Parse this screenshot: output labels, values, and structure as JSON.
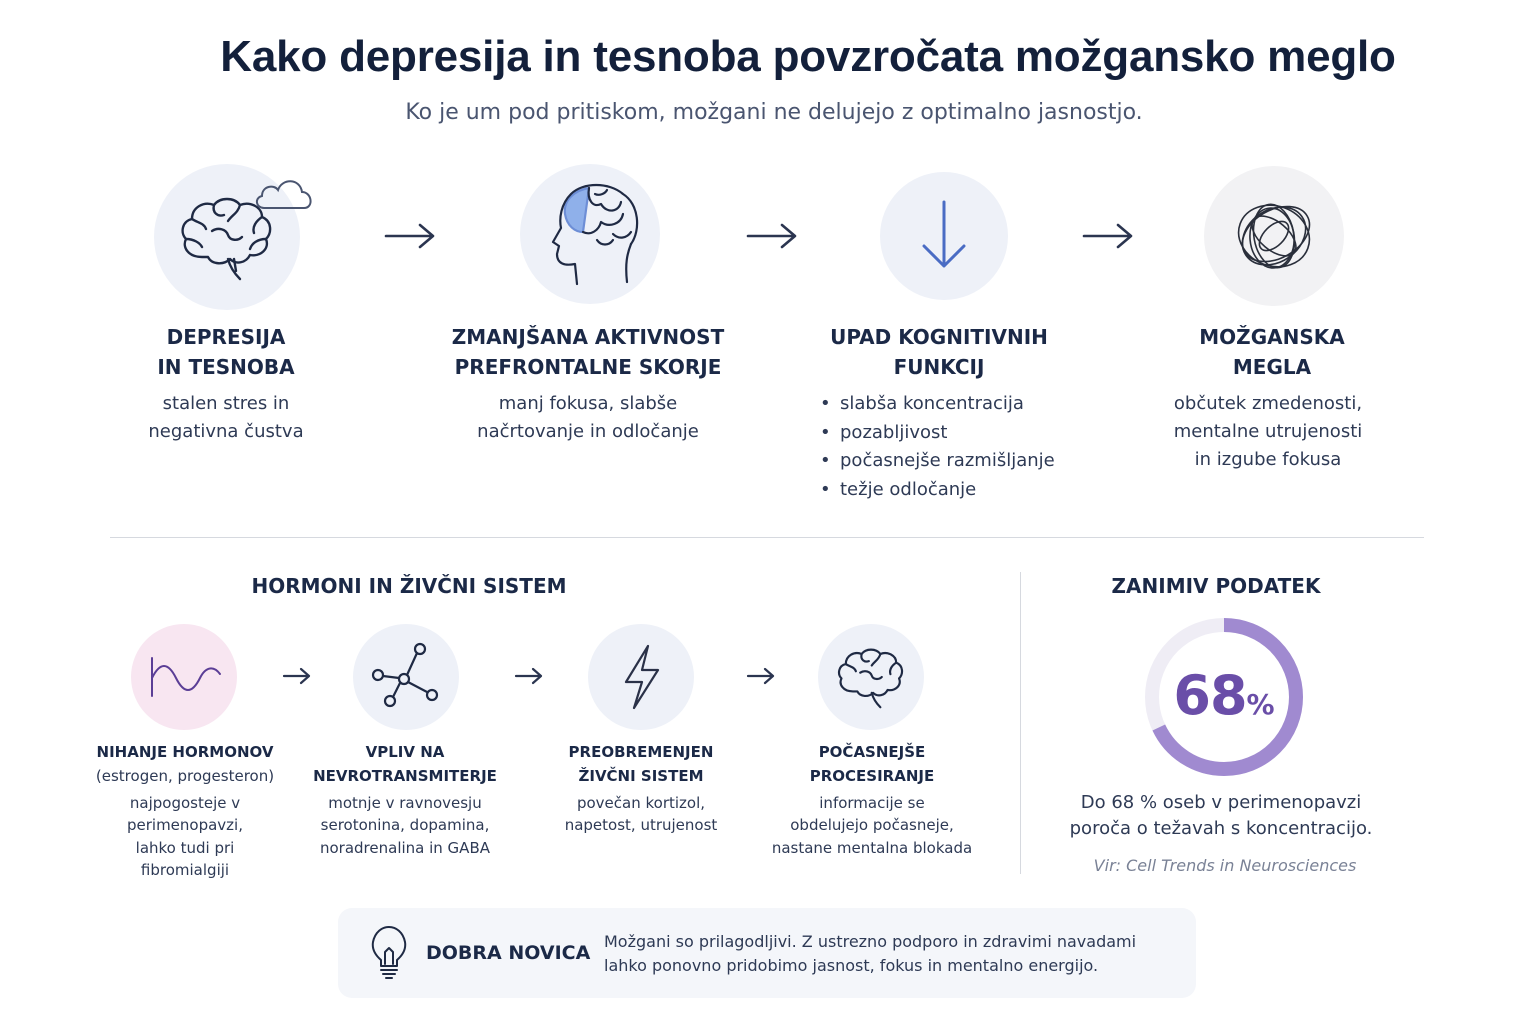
{
  "header": {
    "title": "Kako depresija in tesnoba povzročata možgansko meglo",
    "subtitle": "Ko je um pod pritiskom, možgani ne delujejo z optimalno jasnostjo."
  },
  "flow": [
    {
      "icon": "brain-cloud-icon",
      "title_lines": [
        "DEPRESIJA",
        "IN TESNOBA"
      ],
      "text_lines": [
        "stalen stres in",
        "negativna čustva"
      ]
    },
    {
      "icon": "head-prefrontal-icon",
      "title_lines": [
        "ZMANJŠANA AKTIVNOST",
        "PREFRONTALNE SKORJE"
      ],
      "text_lines": [
        "manj fokusa, slabše",
        "načrtovanje in odločanje"
      ]
    },
    {
      "icon": "down-arrow-icon",
      "title_lines": [
        "UPAD KOGNITIVNIH",
        "FUNKCIJ"
      ],
      "bullets": [
        "slabša koncentracija",
        "pozabljivost",
        "počasnejše razmišljanje",
        "težje odločanje"
      ]
    },
    {
      "icon": "tangled-lines-icon",
      "title_lines": [
        "MOŽGANSKA",
        "MEGLA"
      ],
      "text_lines": [
        "občutek zmedenosti,",
        "mentalne utrujenosti",
        "in izgube fokusa"
      ]
    }
  ],
  "hormones": {
    "heading": "HORMONI IN ŽIVČNI SISTEM",
    "steps": [
      {
        "icon": "hormone-wave-icon",
        "title_lines": [
          "NIHANJE HORMONOV"
        ],
        "sub": "(estrogen, progesteron)",
        "text_lines": [
          "najpogosteje v",
          "perimenopavzi,",
          "lahko tudi pri",
          "fibromialgiji"
        ]
      },
      {
        "icon": "molecule-icon",
        "title_lines": [
          "VPLIV NA",
          "NEVROTRANSMITERJE"
        ],
        "text_lines": [
          "motnje v ravnovesju",
          "serotonina, dopamina,",
          "noradrenalina in GABA"
        ]
      },
      {
        "icon": "lightning-icon",
        "title_lines": [
          "PREOBREMENJEN",
          "ŽIVČNI SISTEM"
        ],
        "text_lines": [
          "povečan kortizol,",
          "napetost, utrujenost"
        ]
      },
      {
        "icon": "brain-icon",
        "title_lines": [
          "POČASNEJŠE",
          "PROCESIRANJE"
        ],
        "text_lines": [
          "informacije se",
          "obdelujejo počasneje,",
          "nastane mentalna blokada"
        ]
      }
    ]
  },
  "fact": {
    "heading": "ZANIMIV PODATEK",
    "value": "68",
    "unit": "%",
    "percent": 68,
    "text_lines": [
      "Do 68 % oseb v perimenopavzi",
      "poroča o težavah s koncentracijo."
    ],
    "source": "Vir: Cell Trends in Neurosciences",
    "colors": {
      "ring": "#a08ad0",
      "track": "#efedf5",
      "number": "#6a4ea8"
    }
  },
  "good_news": {
    "icon": "lightbulb-icon",
    "heading": "DOBRA NOVICA",
    "text_lines": [
      "Možgani so prilagodljivi. Z ustrezno podporo in zdravimi navadami",
      "lahko ponovno pridobimo jasnost, fokus in mentalno energijo."
    ]
  },
  "colors": {
    "accent": "#4a6cc4",
    "icon_stroke": "#1f2a44",
    "circle_bg": "#eef1f8",
    "pink_bg": "#f8e6f1",
    "purple": "#5b3e96"
  }
}
